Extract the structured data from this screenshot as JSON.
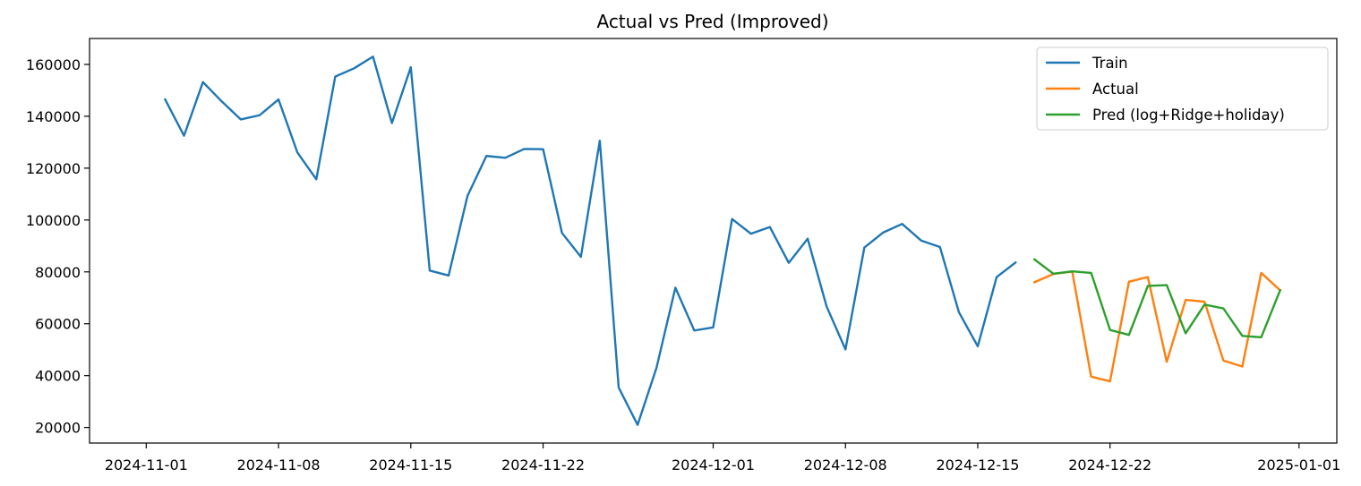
{
  "chart_data": {
    "type": "line",
    "title": "Actual vs Pred (Improved)",
    "xlabel": "",
    "ylabel": "",
    "x_ticks": [
      "2024-11-01",
      "2024-11-08",
      "2024-11-15",
      "2024-11-22",
      "2024-12-01",
      "2024-12-08",
      "2024-12-15",
      "2024-12-22",
      "2025-01-01"
    ],
    "y_ticks": [
      20000,
      40000,
      60000,
      80000,
      100000,
      120000,
      140000,
      160000
    ],
    "xlim": [
      "2024-10-29",
      "2025-01-03"
    ],
    "ylim": [
      14000,
      170000
    ],
    "grid": false,
    "legend_position": "top-right",
    "series": [
      {
        "name": "Train",
        "color": "#1f77b4",
        "points": [
          [
            "2024-11-02",
            146500
          ],
          [
            "2024-11-03",
            132500
          ],
          [
            "2024-11-04",
            153200
          ],
          [
            "2024-11-05",
            145700
          ],
          [
            "2024-11-06",
            138800
          ],
          [
            "2024-11-07",
            140400
          ],
          [
            "2024-11-08",
            146500
          ],
          [
            "2024-11-09",
            126000
          ],
          [
            "2024-11-10",
            115700
          ],
          [
            "2024-11-11",
            155300
          ],
          [
            "2024-11-12",
            158500
          ],
          [
            "2024-11-13",
            163000
          ],
          [
            "2024-11-14",
            137400
          ],
          [
            "2024-11-15",
            158900
          ],
          [
            "2024-11-16",
            80500
          ],
          [
            "2024-11-17",
            78600
          ],
          [
            "2024-11-18",
            109300
          ],
          [
            "2024-11-19",
            124700
          ],
          [
            "2024-11-20",
            124000
          ],
          [
            "2024-11-21",
            127400
          ],
          [
            "2024-11-22",
            127300
          ],
          [
            "2024-11-23",
            95000
          ],
          [
            "2024-11-24",
            85800
          ],
          [
            "2024-11-25",
            130600
          ],
          [
            "2024-11-26",
            35400
          ],
          [
            "2024-11-27",
            21000
          ],
          [
            "2024-11-28",
            43000
          ],
          [
            "2024-11-29",
            73900
          ],
          [
            "2024-11-30",
            57400
          ],
          [
            "2024-12-01",
            58600
          ],
          [
            "2024-12-02",
            100400
          ],
          [
            "2024-12-03",
            94700
          ],
          [
            "2024-12-04",
            97300
          ],
          [
            "2024-12-05",
            83500
          ],
          [
            "2024-12-06",
            92800
          ],
          [
            "2024-12-07",
            66700
          ],
          [
            "2024-12-08",
            50100
          ],
          [
            "2024-12-09",
            89400
          ],
          [
            "2024-12-10",
            95200
          ],
          [
            "2024-12-11",
            98500
          ],
          [
            "2024-12-12",
            92100
          ],
          [
            "2024-12-13",
            89600
          ],
          [
            "2024-12-14",
            64500
          ],
          [
            "2024-12-15",
            51300
          ],
          [
            "2024-12-16",
            78000
          ],
          [
            "2024-12-17",
            83600
          ]
        ]
      },
      {
        "name": "Actual",
        "color": "#ff7f0e",
        "points": [
          [
            "2024-12-18",
            76000
          ],
          [
            "2024-12-19",
            79200
          ],
          [
            "2024-12-20",
            80100
          ],
          [
            "2024-12-21",
            39600
          ],
          [
            "2024-12-22",
            37800
          ],
          [
            "2024-12-23",
            76200
          ],
          [
            "2024-12-24",
            78000
          ],
          [
            "2024-12-25",
            45300
          ],
          [
            "2024-12-26",
            69200
          ],
          [
            "2024-12-27",
            68500
          ],
          [
            "2024-12-28",
            45800
          ],
          [
            "2024-12-29",
            43500
          ],
          [
            "2024-12-30",
            79600
          ],
          [
            "2024-12-31",
            72900
          ]
        ]
      },
      {
        "name": "Pred (log+Ridge+holiday)",
        "color": "#2ca02c",
        "points": [
          [
            "2024-12-18",
            84800
          ],
          [
            "2024-12-19",
            79300
          ],
          [
            "2024-12-20",
            80200
          ],
          [
            "2024-12-21",
            79600
          ],
          [
            "2024-12-22",
            57600
          ],
          [
            "2024-12-23",
            55700
          ],
          [
            "2024-12-24",
            74600
          ],
          [
            "2024-12-25",
            74900
          ],
          [
            "2024-12-26",
            56300
          ],
          [
            "2024-12-27",
            67400
          ],
          [
            "2024-12-28",
            65900
          ],
          [
            "2024-12-29",
            55300
          ],
          [
            "2024-12-30",
            54800
          ],
          [
            "2024-12-31",
            72900
          ]
        ]
      }
    ]
  }
}
